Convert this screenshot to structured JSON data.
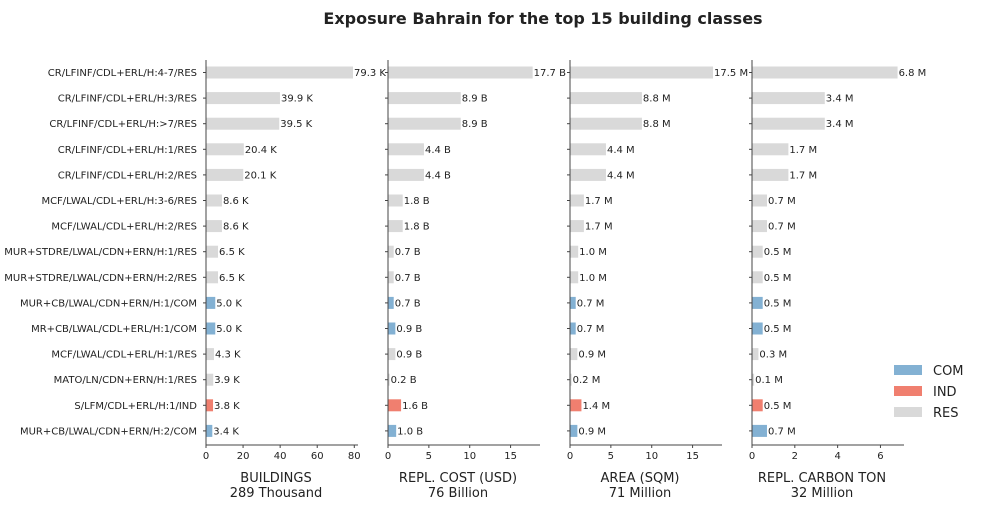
{
  "chart_data": {
    "type": "bar",
    "orientation": "horizontal",
    "title": "Exposure Bahrain for the top 15 building classes",
    "categories": [
      "CR/LFINF/CDL+ERL/H:4-7/RES",
      "CR/LFINF/CDL+ERL/H:3/RES",
      "CR/LFINF/CDL+ERL/H:>7/RES",
      "CR/LFINF/CDL+ERL/H:1/RES",
      "CR/LFINF/CDL+ERL/H:2/RES",
      "MCF/LWAL/CDL+ERL/H:3-6/RES",
      "MCF/LWAL/CDL+ERL/H:2/RES",
      "MUR+STDRE/LWAL/CDN+ERN/H:1/RES",
      "MUR+STDRE/LWAL/CDN+ERN/H:2/RES",
      "MUR+CB/LWAL/CDN+ERN/H:1/COM",
      "MR+CB/LWAL/CDL+ERL/H:1/COM",
      "MCF/LWAL/CDL+ERL/H:1/RES",
      "MATO/LN/CDN+ERN/H:1/RES",
      "S/LFM/CDL+ERL/H:1/IND",
      "MUR+CB/LWAL/CDN+ERN/H:2/COM"
    ],
    "occupancy": [
      "RES",
      "RES",
      "RES",
      "RES",
      "RES",
      "RES",
      "RES",
      "RES",
      "RES",
      "COM",
      "COM",
      "RES",
      "RES",
      "IND",
      "COM"
    ],
    "legend": {
      "position": "right",
      "entries": [
        {
          "name": "COM",
          "color": "#83b1d3"
        },
        {
          "name": "IND",
          "color": "#f07f6f"
        },
        {
          "name": "RES",
          "color": "#d9d9d9"
        }
      ]
    },
    "panels": [
      {
        "xlabel": "BUILDINGS",
        "total": "289 Thousand",
        "xlim": [
          0,
          82
        ],
        "ticks": [
          0,
          20,
          40,
          60,
          80
        ],
        "values": [
          79.3,
          39.9,
          39.5,
          20.4,
          20.1,
          8.6,
          8.6,
          6.5,
          6.5,
          5.0,
          5.0,
          4.3,
          3.9,
          3.8,
          3.4
        ],
        "labels": [
          "79.3 K",
          "39.9 K",
          "39.5 K",
          "20.4 K",
          "20.1 K",
          "8.6 K",
          "8.6 K",
          "6.5 K",
          "6.5 K",
          "5.0 K",
          "5.0 K",
          "4.3 K",
          "3.9 K",
          "3.8 K",
          "3.4 K"
        ]
      },
      {
        "xlabel": "REPL. COST (USD)",
        "total": "76 Billion",
        "xlim": [
          0,
          18.6
        ],
        "ticks": [
          0,
          5,
          10,
          15
        ],
        "values": [
          17.7,
          8.9,
          8.9,
          4.4,
          4.4,
          1.8,
          1.8,
          0.7,
          0.7,
          0.7,
          0.9,
          0.9,
          0.2,
          1.6,
          1.0
        ],
        "labels": [
          "17.7 B",
          "8.9 B",
          "8.9 B",
          "4.4 B",
          "4.4 B",
          "1.8 B",
          "1.8 B",
          "0.7 B",
          "0.7 B",
          "0.7 B",
          "0.9 B",
          "0.9 B",
          "0.2 B",
          "1.6 B",
          "1.0 B"
        ]
      },
      {
        "xlabel": "AREA (SQM)",
        "total": "71 Million",
        "xlim": [
          0,
          18.6
        ],
        "ticks": [
          0,
          5,
          10,
          15
        ],
        "values": [
          17.5,
          8.8,
          8.8,
          4.4,
          4.4,
          1.7,
          1.7,
          1.0,
          1.0,
          0.7,
          0.7,
          0.9,
          0.2,
          1.4,
          0.9
        ],
        "labels": [
          "17.5 M",
          "8.8 M",
          "8.8 M",
          "4.4 M",
          "4.4 M",
          "1.7 M",
          "1.7 M",
          "1.0 M",
          "1.0 M",
          "0.7 M",
          "0.7 M",
          "0.9 M",
          "0.2 M",
          "1.4 M",
          "0.9 M"
        ]
      },
      {
        "xlabel": "REPL. CARBON TON",
        "total": "32 Million",
        "xlim": [
          0,
          7.1
        ],
        "ticks": [
          0,
          2,
          4,
          6
        ],
        "values": [
          6.8,
          3.4,
          3.4,
          1.7,
          1.7,
          0.7,
          0.7,
          0.5,
          0.5,
          0.5,
          0.5,
          0.3,
          0.1,
          0.5,
          0.7
        ],
        "labels": [
          "6.8 M",
          "3.4 M",
          "3.4 M",
          "1.7 M",
          "1.7 M",
          "0.7 M",
          "0.7 M",
          "0.5 M",
          "0.5 M",
          "0.5 M",
          "0.5 M",
          "0.3 M",
          "0.1 M",
          "0.5 M",
          "0.7 M"
        ]
      }
    ]
  }
}
